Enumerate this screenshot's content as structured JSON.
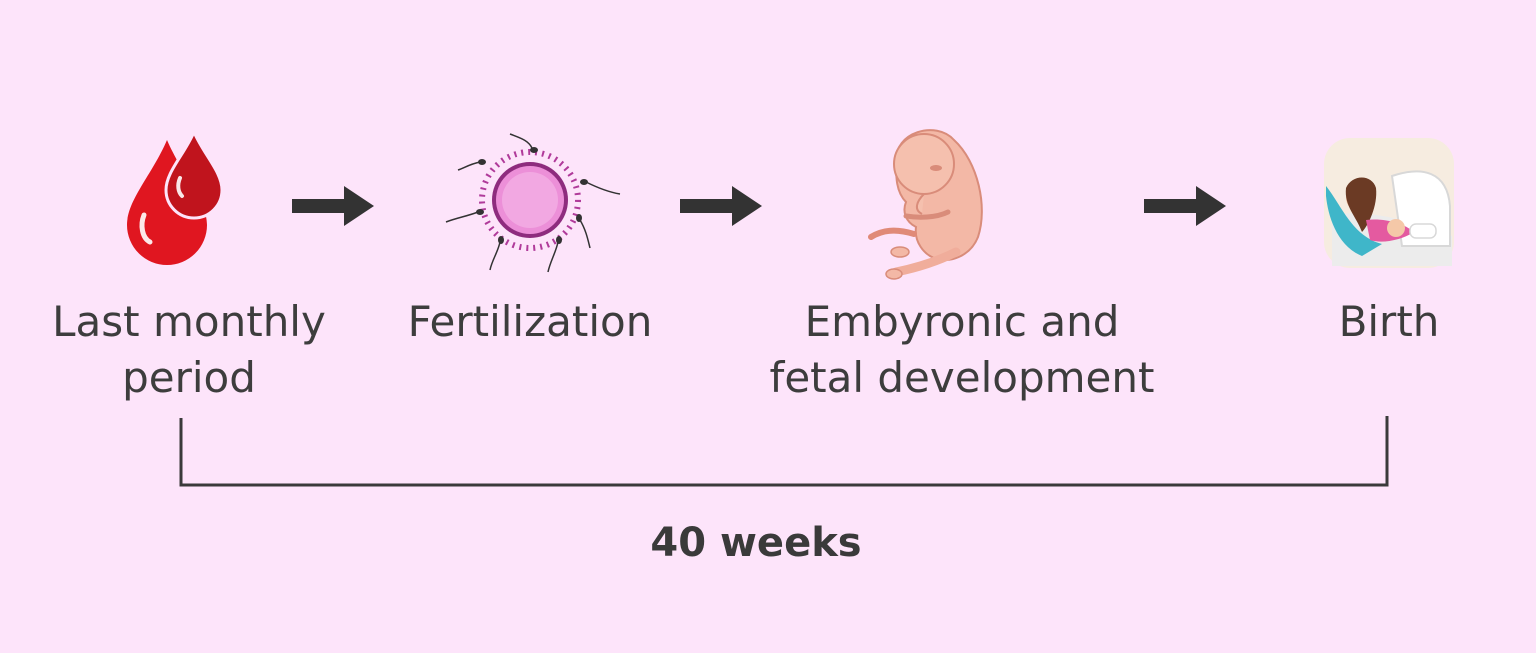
{
  "steps": [
    {
      "icon": "blood-drops-icon",
      "line1": "Last monthly",
      "line2": "period"
    },
    {
      "icon": "egg-sperm-icon",
      "line1": "Fertilization",
      "line2": ""
    },
    {
      "icon": "fetus-icon",
      "line1": "Embyronic and",
      "line2": "fetal development"
    },
    {
      "icon": "mother-baby-icon",
      "line1": "Birth",
      "line2": ""
    }
  ],
  "duration_label": "40 weeks",
  "colors": {
    "background": "#fde4fa",
    "text": "#3d3d3d",
    "arrow": "#333333",
    "blood": "#d9141e",
    "egg": "#e88ad6",
    "fetus": "#f2b5a4"
  }
}
